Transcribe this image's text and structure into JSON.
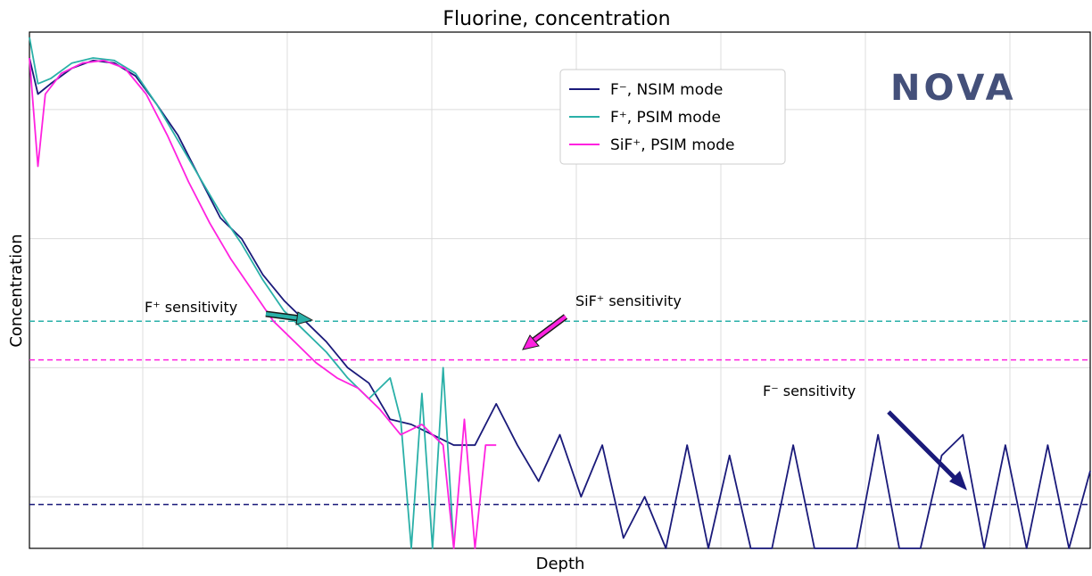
{
  "chart_data": {
    "type": "line",
    "title": "Fluorine, concentration",
    "xlabel": "Depth",
    "ylabel": "Concentration",
    "xlim": [
      0,
      1
    ],
    "ylim": [
      0,
      1
    ],
    "grid": true,
    "ticks_labeled": false,
    "legend_position": "top-center",
    "series": [
      {
        "name": "F⁻, NSIM mode",
        "color": "#1a1a7a",
        "x": [
          0.0,
          0.008,
          0.02,
          0.04,
          0.06,
          0.08,
          0.1,
          0.12,
          0.14,
          0.16,
          0.18,
          0.2,
          0.22,
          0.24,
          0.26,
          0.28,
          0.3,
          0.32,
          0.34,
          0.36,
          0.38,
          0.4,
          0.42,
          0.44,
          0.46,
          0.48,
          0.5,
          0.52,
          0.54,
          0.56,
          0.58,
          0.6,
          0.62,
          0.64,
          0.66,
          0.68,
          0.7,
          0.72,
          0.74,
          0.76,
          0.78,
          0.8,
          0.82,
          0.84,
          0.86,
          0.88,
          0.9,
          0.92,
          0.94,
          0.96,
          0.98,
          1.0
        ],
        "y": [
          0.95,
          0.88,
          0.9,
          0.93,
          0.945,
          0.94,
          0.915,
          0.86,
          0.8,
          0.72,
          0.64,
          0.6,
          0.53,
          0.48,
          0.44,
          0.4,
          0.35,
          0.32,
          0.25,
          0.24,
          0.22,
          0.2,
          0.2,
          0.28,
          0.2,
          0.13,
          0.22,
          0.1,
          0.2,
          0.02,
          0.1,
          0.0,
          0.2,
          0.0,
          0.18,
          0.0,
          0.0,
          0.2,
          0.0,
          0.0,
          0.0,
          0.22,
          0.0,
          0.0,
          0.18,
          0.22,
          0.0,
          0.2,
          0.0,
          0.2,
          0.0,
          0.15
        ]
      },
      {
        "name": "F⁺, PSIM mode",
        "color": "#2ab0a8",
        "x": [
          0.0,
          0.008,
          0.02,
          0.04,
          0.06,
          0.08,
          0.1,
          0.12,
          0.14,
          0.16,
          0.18,
          0.2,
          0.22,
          0.24,
          0.26,
          0.28,
          0.3,
          0.32,
          0.34,
          0.35,
          0.36,
          0.37,
          0.38,
          0.39,
          0.4
        ],
        "y": [
          0.99,
          0.9,
          0.91,
          0.94,
          0.95,
          0.945,
          0.92,
          0.86,
          0.79,
          0.72,
          0.65,
          0.59,
          0.52,
          0.46,
          0.42,
          0.38,
          0.33,
          0.29,
          0.33,
          0.25,
          0.0,
          0.3,
          0.0,
          0.35,
          0.0
        ]
      },
      {
        "name": "SiF⁺, PSIM mode",
        "color": "#ff22e0",
        "x": [
          0.0,
          0.008,
          0.015,
          0.03,
          0.05,
          0.07,
          0.09,
          0.11,
          0.13,
          0.15,
          0.17,
          0.19,
          0.21,
          0.23,
          0.25,
          0.27,
          0.29,
          0.31,
          0.33,
          0.35,
          0.37,
          0.39,
          0.4,
          0.41,
          0.42,
          0.43,
          0.44
        ],
        "y": [
          0.95,
          0.74,
          0.88,
          0.92,
          0.94,
          0.945,
          0.93,
          0.88,
          0.8,
          0.71,
          0.63,
          0.56,
          0.5,
          0.44,
          0.4,
          0.36,
          0.33,
          0.31,
          0.27,
          0.22,
          0.24,
          0.2,
          0.0,
          0.25,
          0.0,
          0.2,
          0.2
        ]
      }
    ],
    "thresholds": [
      {
        "name": "F⁺ sensitivity",
        "y": 0.44,
        "color": "#2ab0a8",
        "style": "dashed"
      },
      {
        "name": "SiF⁺ sensitivity",
        "y": 0.365,
        "color": "#ff22e0",
        "style": "dashed"
      },
      {
        "name": "F⁻ sensitivity",
        "y": 0.085,
        "color": "#1a1a7a",
        "style": "dashed"
      }
    ],
    "annotations": [
      {
        "text": "F⁺ sensitivity",
        "arrow_color": "#2ab0a8"
      },
      {
        "text": "SiF⁺ sensitivity",
        "arrow_color": "#ff22e0"
      },
      {
        "text": "F⁻ sensitivity",
        "arrow_color": "#1a1a7a"
      }
    ]
  },
  "logo": {
    "text": "NOVA",
    "color": "#44507a",
    "accent": "#c050c8"
  }
}
